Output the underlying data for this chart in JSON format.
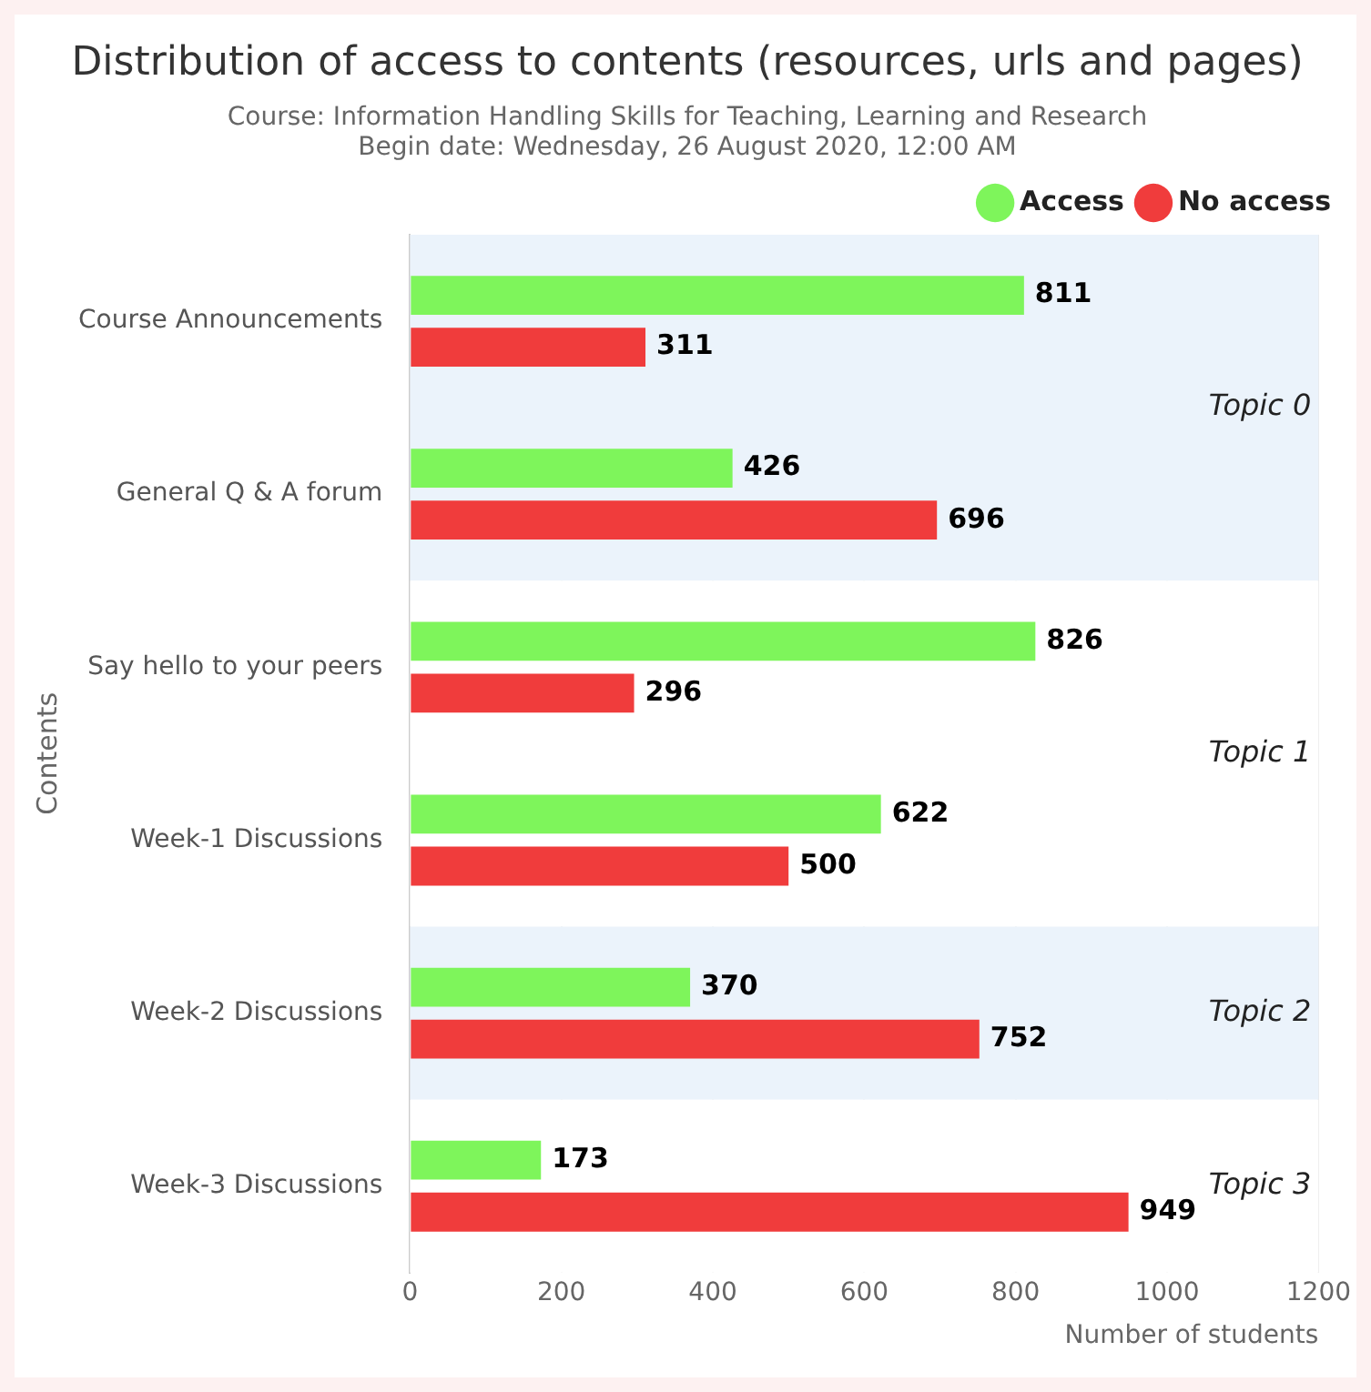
{
  "chart_data": {
    "type": "bar",
    "orientation": "horizontal",
    "title": "Distribution of access to contents (resources, urls and pages)",
    "subtitle": "Course: Information Handling Skills for Teaching, Learning and Research\nBegin date: Wednesday, 26 August 2020, 12:00 AM",
    "xlabel": "Number of students",
    "ylabel": "Contents",
    "categories": [
      "Course Announcements",
      "General Q & A forum",
      "Say hello to your peers",
      "Week-1 Discussions",
      "Week-2 Discussions",
      "Week-3 Discussions"
    ],
    "series": [
      {
        "name": "Access",
        "color": "#7ef55b",
        "values": [
          811,
          426,
          826,
          622,
          370,
          173
        ]
      },
      {
        "name": "No access",
        "color": "#f03c3c",
        "values": [
          311,
          696,
          296,
          500,
          752,
          949
        ]
      }
    ],
    "xlim": [
      0,
      1200
    ],
    "xticks": [
      0,
      200,
      400,
      600,
      800,
      1000,
      1200
    ],
    "bands": [
      {
        "axis": "y",
        "from": "Course Announcements",
        "to": "General Q & A forum",
        "label": "Topic 0",
        "color": "#ebf3fb"
      },
      {
        "axis": "y",
        "from": "Say hello to your peers",
        "to": "Week-1 Discussions",
        "label": "Topic 1",
        "color": "#ffffff"
      },
      {
        "axis": "y",
        "from": "Week-2 Discussions",
        "to": "Week-2 Discussions",
        "label": "Topic 2",
        "color": "#ebf3fb"
      },
      {
        "axis": "y",
        "from": "Week-3 Discussions",
        "to": "Week-3 Discussions",
        "label": "Topic 3",
        "color": "#ffffff"
      }
    ],
    "data_labels": true,
    "grid": "x",
    "legend": "top right"
  }
}
